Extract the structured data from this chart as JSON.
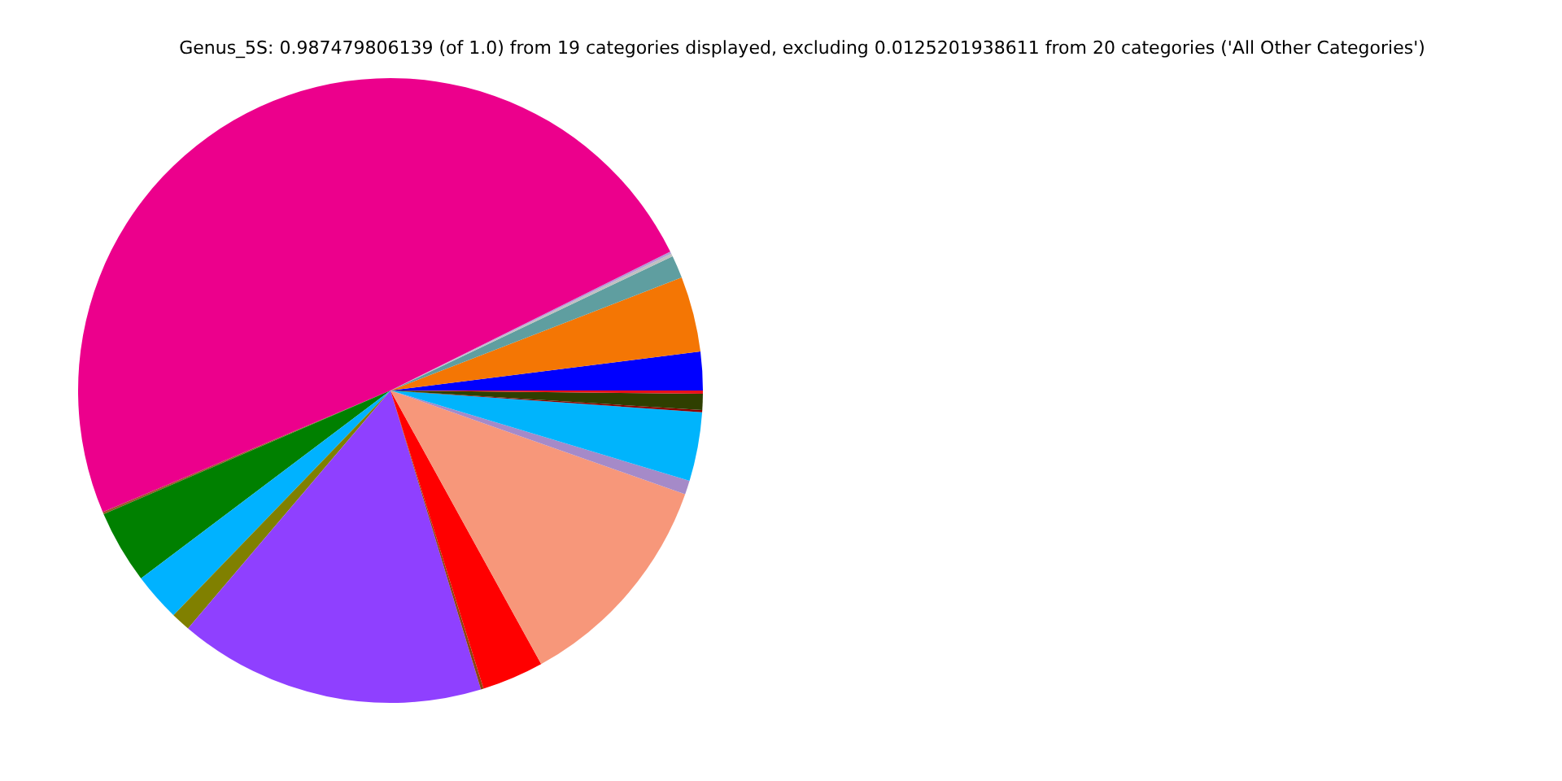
{
  "chart_data": {
    "type": "pie",
    "title": "Genus_5S: 0.987479806139 (of 1.0) from 19 categories displayed, excluding 0.0125201938611 from 20 categories ('All Other Categories')",
    "categories": [
      null,
      null,
      null,
      null,
      null,
      null,
      null,
      null,
      null,
      null,
      null,
      null,
      null,
      null,
      null,
      null,
      null,
      null,
      null
    ],
    "values": [
      2.0,
      3.9,
      1.17,
      0.15,
      0.12,
      49.04,
      0.11,
      3.8,
      2.5,
      1.0,
      15.9,
      0.14,
      3.2,
      11.6,
      0.72,
      3.56,
      0.11,
      0.83,
      0.17
    ],
    "colors": [
      "#0000ff",
      "#f47604",
      "#5f9ea0",
      "#c0c0c0",
      "#b19cd9",
      "#ec008c",
      "#a0522d",
      "#008000",
      "#00b2ff",
      "#808000",
      "#8f40ff",
      "#8b4513",
      "#ff0000",
      "#f7977a",
      "#a58ac8",
      "#00b4fc",
      "#8b0000",
      "#2f3f00",
      "#e8101a"
    ]
  }
}
